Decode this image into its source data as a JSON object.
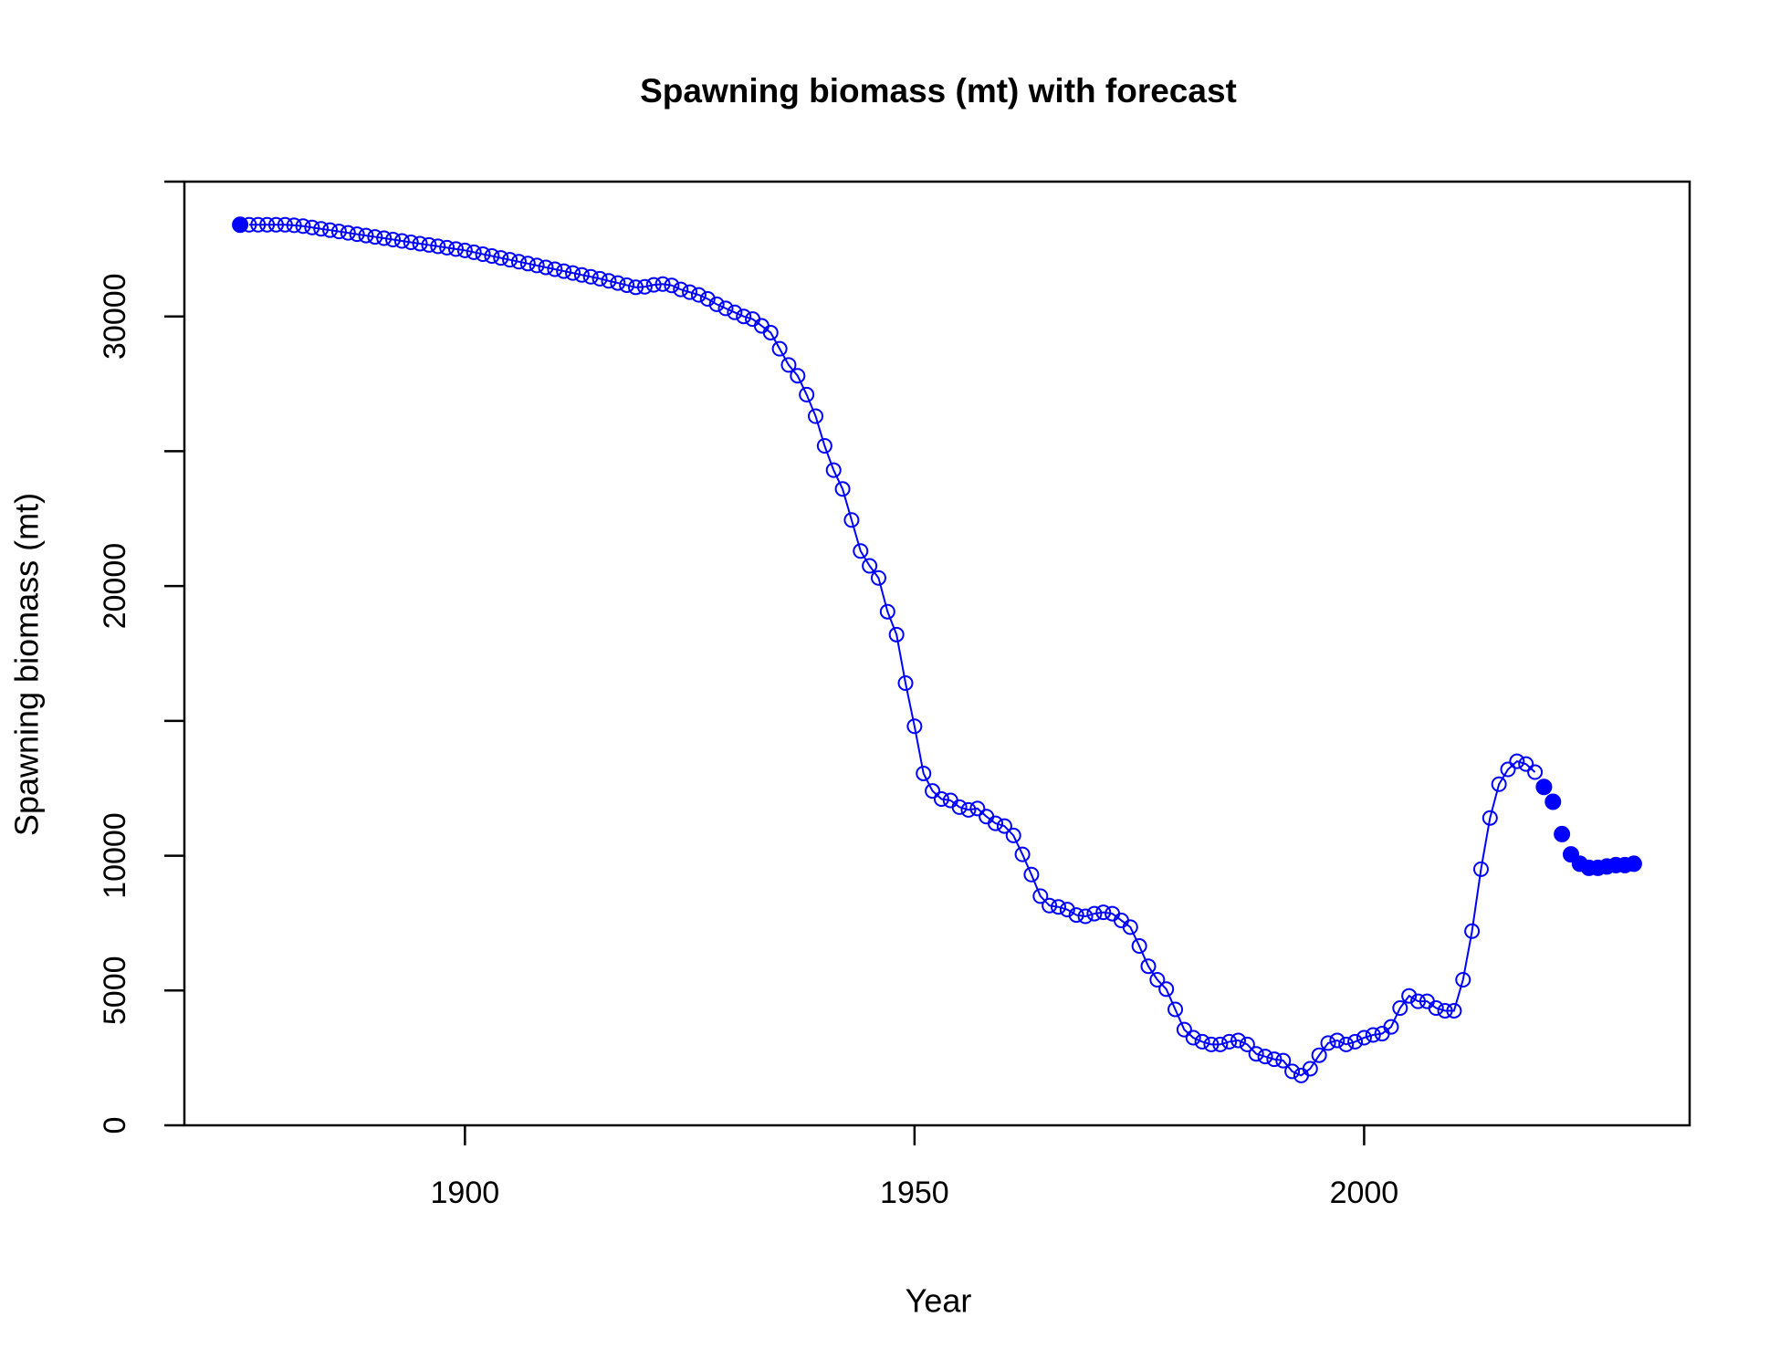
{
  "chart_data": {
    "type": "line",
    "title": "Spawning biomass (mt) with forecast",
    "x_label": "Year",
    "y_label": "Spawning biomass (mt)",
    "xlim": [
      1868.8,
      2036.2
    ],
    "ylim": [
      0,
      35000
    ],
    "xticks": [
      1900,
      1950,
      2000
    ],
    "yticks": [
      0,
      5000,
      10000,
      {
        "value": 15000,
        "label": null
      },
      20000,
      {
        "value": 25000,
        "label": null
      },
      30000,
      {
        "value": 35000,
        "label": null
      }
    ],
    "x": [
      1875,
      1876,
      1877,
      1878,
      1879,
      1880,
      1881,
      1882,
      1883,
      1884,
      1885,
      1886,
      1887,
      1888,
      1889,
      1890,
      1891,
      1892,
      1893,
      1894,
      1895,
      1896,
      1897,
      1898,
      1899,
      1900,
      1901,
      1902,
      1903,
      1904,
      1905,
      1906,
      1907,
      1908,
      1909,
      1910,
      1911,
      1912,
      1913,
      1914,
      1915,
      1916,
      1917,
      1918,
      1919,
      1920,
      1921,
      1922,
      1923,
      1924,
      1925,
      1926,
      1927,
      1928,
      1929,
      1930,
      1931,
      1932,
      1933,
      1934,
      1935,
      1936,
      1937,
      1938,
      1939,
      1940,
      1941,
      1942,
      1943,
      1944,
      1945,
      1946,
      1947,
      1948,
      1949,
      1950,
      1951,
      1952,
      1953,
      1954,
      1955,
      1956,
      1957,
      1958,
      1959,
      1960,
      1961,
      1962,
      1963,
      1964,
      1965,
      1966,
      1967,
      1968,
      1969,
      1970,
      1971,
      1972,
      1973,
      1974,
      1975,
      1976,
      1977,
      1978,
      1979,
      1980,
      1981,
      1982,
      1983,
      1984,
      1985,
      1986,
      1987,
      1988,
      1989,
      1990,
      1991,
      1992,
      1993,
      1994,
      1995,
      1996,
      1997,
      1998,
      1999,
      2000,
      2001,
      2002,
      2003,
      2004,
      2005,
      2006,
      2007,
      2008,
      2009,
      2010,
      2011,
      2012,
      2013,
      2014,
      2015,
      2016,
      2017,
      2018,
      2019,
      2020,
      2021,
      2022,
      2023,
      2024,
      2025,
      2026,
      2027,
      2028,
      2029,
      2030
    ],
    "series": [
      {
        "color": "#0000ff",
        "marker": "filled",
        "line": false,
        "values": [
          33400,
          null,
          null,
          null,
          null,
          null,
          null,
          null,
          null,
          null,
          null,
          null,
          null,
          null,
          null,
          null,
          null,
          null,
          null,
          null,
          null,
          null,
          null,
          null,
          null,
          null,
          null,
          null,
          null,
          null,
          null,
          null,
          null,
          null,
          null,
          null,
          null,
          null,
          null,
          null,
          null,
          null,
          null,
          null,
          null,
          null,
          null,
          null,
          null,
          null,
          null,
          null,
          null,
          null,
          null,
          null,
          null,
          null,
          null,
          null,
          null,
          null,
          null,
          null,
          null,
          null,
          null,
          null,
          null,
          null,
          null,
          null,
          null,
          null,
          null,
          null,
          null,
          null,
          null,
          null,
          null,
          null,
          null,
          null,
          null,
          null,
          null,
          null,
          null,
          null,
          null,
          null,
          null,
          null,
          null,
          null,
          null,
          null,
          null,
          null,
          null,
          null,
          null,
          null,
          null,
          null,
          null,
          null,
          null,
          null,
          null,
          null,
          null,
          null,
          null,
          null,
          null,
          null,
          null,
          null,
          null,
          null,
          null,
          null,
          null,
          null,
          null,
          null,
          null,
          null,
          null,
          null,
          null,
          null,
          null,
          null,
          null,
          null,
          null,
          null,
          null,
          null,
          null,
          null,
          null,
          12550,
          12000,
          10800,
          10050,
          9700,
          9550,
          9550,
          9600,
          9650,
          9650,
          9700
        ]
      },
      {
        "color": "#0000ff",
        "marker": "open",
        "line": true,
        "values": [
          null,
          33400,
          33400,
          33400,
          33400,
          33400,
          33380,
          33350,
          33300,
          33250,
          33200,
          33150,
          33100,
          33050,
          33000,
          32950,
          32900,
          32850,
          32800,
          32750,
          32700,
          32650,
          32600,
          32550,
          32500,
          32450,
          32380,
          32310,
          32240,
          32170,
          32100,
          32030,
          31960,
          31890,
          31820,
          31750,
          31680,
          31610,
          31540,
          31470,
          31400,
          31320,
          31240,
          31160,
          31080,
          31100,
          31170,
          31200,
          31150,
          31000,
          30900,
          30800,
          30650,
          30450,
          30300,
          30150,
          30000,
          29900,
          29650,
          29400,
          28800,
          28200,
          27800,
          27100,
          26300,
          25200,
          24300,
          23600,
          22450,
          21300,
          20750,
          20300,
          19050,
          18200,
          16400,
          14800,
          13050,
          12400,
          12100,
          12050,
          11800,
          11700,
          11750,
          11450,
          11200,
          11100,
          10750,
          10050,
          9300,
          8500,
          8150,
          8100,
          8000,
          7800,
          7750,
          7850,
          7900,
          7850,
          7600,
          7350,
          6650,
          5900,
          5400,
          5050,
          4300,
          3550,
          3250,
          3100,
          3000,
          3000,
          3100,
          3150,
          3000,
          2650,
          2550,
          2450,
          2400,
          2000,
          1850,
          2100,
          2600,
          3050,
          3150,
          3000,
          3100,
          3250,
          3350,
          3400,
          3650,
          4350,
          4800,
          4600,
          4600,
          4350,
          4250,
          4250,
          5400,
          7200,
          9500,
          11400,
          12650,
          13200,
          13500,
          13400,
          13100,
          null,
          null,
          null,
          null,
          null,
          null,
          null,
          null,
          null,
          null,
          null
        ]
      }
    ]
  }
}
